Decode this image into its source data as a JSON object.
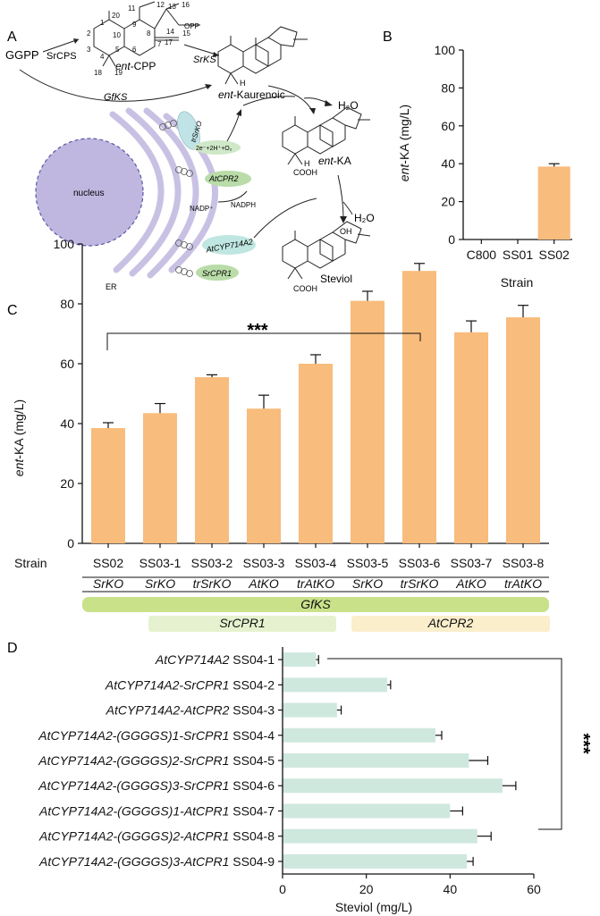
{
  "colors": {
    "bar_orange": "#f8bc7c",
    "bar_teal": "#cfe8de",
    "gfks_band": "#c9e28a",
    "srcpr1_band": "#e6f2cf",
    "atcpr2_band": "#fbeecb",
    "er": "#c9c1e3",
    "nucleus": "#bfb7e0"
  },
  "panelA": {
    "letter": "A",
    "gg": "GGPP",
    "srcps": "SrCPS",
    "srks": "SrKS",
    "gfks": "GfKS",
    "entcpp": "ent-CPP",
    "opp": "OPP",
    "entkaurenoic": "ent-Kaurenoic",
    "h2o_1": "H₂O",
    "h2o_2": "H₂O",
    "entka": "ent-KA",
    "cooh1": "COOH",
    "cooh2": "COOH",
    "steviol": "Steviol",
    "oh": "OH",
    "h1": "H",
    "h2": "H",
    "nucleus": "nucleus",
    "er": "ER",
    "trsrko": "trSrKO",
    "atcpr2": "AtCPR2",
    "atcyp714a2": "AtCYP714A2",
    "srcpr1": "SrCPR1",
    "electrons": "2e⁻+2H⁺+O₂",
    "nadp": "NADP⁺",
    "nadph": "NADPH",
    "carbon_numbers": [
      "1",
      "2",
      "3",
      "4",
      "5",
      "6",
      "7",
      "8",
      "9",
      "10",
      "11",
      "12",
      "13",
      "14",
      "15",
      "16",
      "17",
      "18",
      "19",
      "20"
    ]
  },
  "chart_data": [
    {
      "panel": "B",
      "type": "bar",
      "categories": [
        "C800",
        "SS01",
        "SS02"
      ],
      "values": [
        0,
        0,
        38.5
      ],
      "errors": [
        0,
        0,
        1.5
      ],
      "ylabel_prefix": "ent",
      "ylabel_suffix": "-KA (mg/L)",
      "xlabel": "Strain",
      "ylim": [
        0,
        100
      ],
      "yticks": [
        0,
        20,
        40,
        60,
        80,
        100
      ]
    },
    {
      "panel": "C",
      "type": "bar",
      "categories": [
        "SS02",
        "SS03-1",
        "SS03-2",
        "SS03-3",
        "SS03-4",
        "SS03-5",
        "SS03-6",
        "SS03-7",
        "SS03-8"
      ],
      "values": [
        38.5,
        43.5,
        55.5,
        45,
        60,
        81,
        91,
        70.5,
        75.5
      ],
      "errors": [
        1.8,
        3.2,
        0.8,
        4.5,
        3.0,
        3.2,
        2.5,
        3.8,
        4.0
      ],
      "ylabel_prefix": "ent",
      "ylabel_suffix": "-KA (mg/L)",
      "xlabel": "Strain",
      "ko_labels": [
        "SrKO",
        "SrKO",
        "trSrKO",
        "AtKO",
        "trAtKO",
        "SrKO",
        "trSrKO",
        "AtKO",
        "trAtKO"
      ],
      "bands": {
        "gfks": "GfKS",
        "srcpr1": "SrCPR1",
        "atcpr2": "AtCPR2"
      },
      "significance": "***",
      "ylim": [
        0,
        100
      ],
      "yticks": [
        0,
        20,
        40,
        60,
        80,
        100
      ]
    },
    {
      "panel": "D",
      "type": "bar",
      "orientation": "horizontal",
      "constructs": [
        "AtCYP714A2",
        "AtCYP714A2-SrCPR1",
        "AtCYP714A2-AtCPR2",
        "AtCYP714A2-(GGGGS)1-SrCPR1",
        "AtCYP714A2-(GGGGS)2-SrCPR1",
        "AtCYP714A2-(GGGGS)3-SrCPR1",
        "AtCYP714A2-(GGGGS)1-AtCPR1",
        "AtCYP714A2-(GGGGS)2-AtCPR1",
        "AtCYP714A2-(GGGGS)3-AtCPR1"
      ],
      "strains": [
        "SS04-1",
        "SS04-2",
        "SS04-3",
        "SS04-4",
        "SS04-5",
        "SS04-6",
        "SS04-7",
        "SS04-8",
        "SS04-9"
      ],
      "values": [
        8,
        25,
        13,
        36.5,
        44.5,
        52.5,
        40,
        46.5,
        44
      ],
      "errors": [
        0.6,
        0.8,
        1.0,
        1.5,
        4.5,
        3.2,
        3.0,
        3.3,
        1.5
      ],
      "xlabel": "Steviol (mg/L)",
      "significance": "***",
      "xlim": [
        0,
        60
      ],
      "xticks": [
        0,
        20,
        40,
        60
      ]
    }
  ]
}
